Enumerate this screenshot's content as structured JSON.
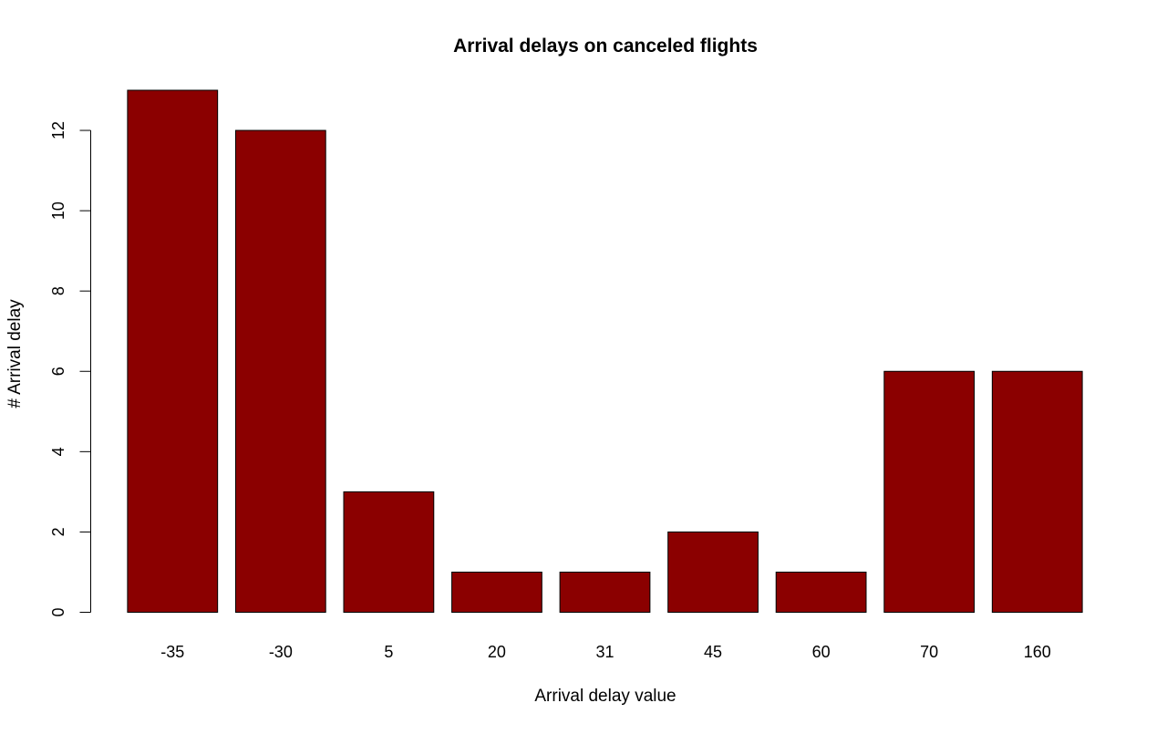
{
  "chart_data": {
    "type": "bar",
    "title": "Arrival delays on canceled flights",
    "xlabel": "Arrival delay value",
    "ylabel": "# Arrival delay",
    "categories": [
      "-35",
      "-30",
      "5",
      "20",
      "31",
      "45",
      "60",
      "70",
      "160"
    ],
    "values": [
      13,
      12,
      3,
      1,
      1,
      2,
      1,
      6,
      6
    ],
    "ylim": [
      0,
      13
    ],
    "yticks": [
      0,
      2,
      4,
      6,
      8,
      10,
      12
    ],
    "bar_color": "#8b0000",
    "grid": false,
    "legend": "none"
  }
}
